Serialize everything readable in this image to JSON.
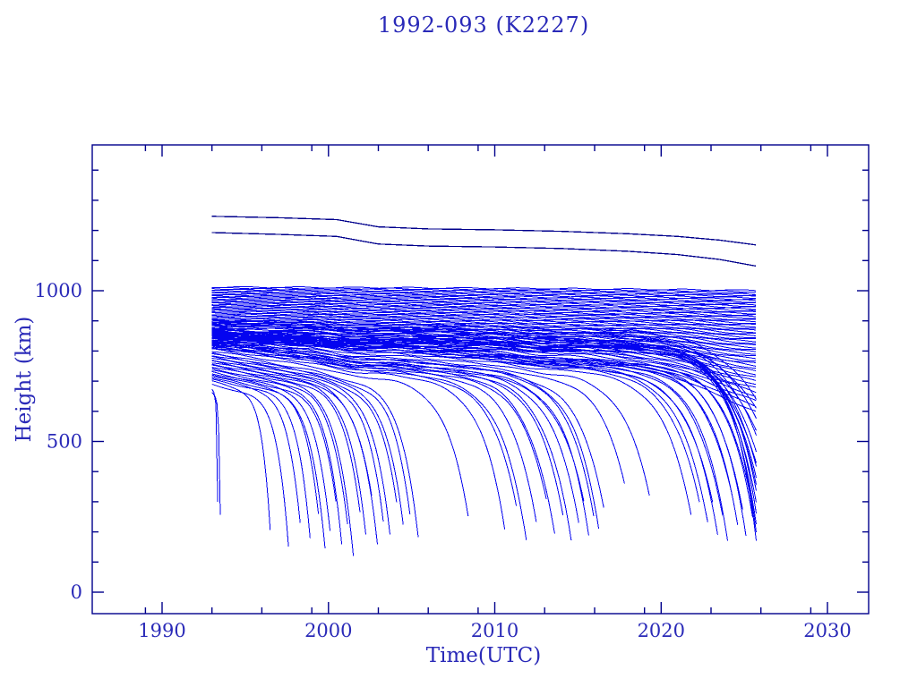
{
  "title": "1992-093 (K2227)",
  "colors": {
    "background": "#ffffff",
    "axis": "#00008c",
    "text": "#2a2ab8",
    "debris_line": "#0404f0",
    "parent_line": "#00008c"
  },
  "chart_data": {
    "type": "line",
    "title": "1992-093 (K2227)",
    "xlabel": "Time(UTC)",
    "ylabel": "Height (km)",
    "xlim": [
      1985.8,
      2032.6
    ],
    "ylim": [
      -70,
      1484
    ],
    "grid": false,
    "legend": "none",
    "x_major_ticks": [
      1990,
      2000,
      2010,
      2020,
      2030
    ],
    "x_tick_labels": [
      "1990",
      "2000",
      "2010",
      "2020",
      "2030"
    ],
    "x_minor_ticks": [
      1989,
      1993,
      1996,
      1999,
      2003,
      2006,
      2009,
      2013,
      2016,
      2019,
      2023,
      2026,
      2029
    ],
    "y_major_ticks": [
      0,
      500,
      1000
    ],
    "y_tick_labels": [
      "0",
      "500",
      "1000"
    ],
    "y_minor_ticks": [
      100,
      200,
      300,
      400,
      600,
      700,
      800,
      900,
      1100,
      1200,
      1300,
      1400
    ],
    "epoch_start_year": 1993.0,
    "epoch_end_year": 2025.7,
    "parent_series": [
      {
        "name": "parent-object-upper",
        "points": [
          [
            1993,
            1247
          ],
          [
            1997,
            1242
          ],
          [
            2000.5,
            1236
          ],
          [
            2003,
            1212
          ],
          [
            2006,
            1205
          ],
          [
            2010,
            1202
          ],
          [
            2014,
            1197
          ],
          [
            2018,
            1189
          ],
          [
            2021,
            1180
          ],
          [
            2023.5,
            1168
          ],
          [
            2025.7,
            1152
          ]
        ]
      },
      {
        "name": "parent-object-lower",
        "points": [
          [
            1993,
            1193
          ],
          [
            1997,
            1187
          ],
          [
            2000.5,
            1180
          ],
          [
            2003,
            1155
          ],
          [
            2006,
            1148
          ],
          [
            2010,
            1145
          ],
          [
            2014,
            1140
          ],
          [
            2018,
            1131
          ],
          [
            2021,
            1120
          ],
          [
            2023.5,
            1104
          ],
          [
            2025.7,
            1082
          ]
        ]
      }
    ],
    "fragment_model": "height(t) = h0 - a*u - (h0 - a - hEnd)*u^p with u=(t-1993)/(tEnd-1993); curves ending before 2025.6 are re-entered fragments; columns: [h0_km, tEnd_year, hEnd_km, a_km, p]",
    "fragments": [
      [
        1012,
        2025.7,
        1001,
        6,
        3
      ],
      [
        1009,
        2025.7,
        997,
        6,
        3
      ],
      [
        1006,
        2025.7,
        993,
        7,
        3
      ],
      [
        1003,
        2025.7,
        989,
        7,
        3
      ],
      [
        1000,
        2025.7,
        985,
        8,
        3
      ],
      [
        997,
        2025.7,
        981,
        8,
        3
      ],
      [
        994,
        2025.7,
        977,
        9,
        3
      ],
      [
        991,
        2025.7,
        972,
        9,
        3
      ],
      [
        988,
        2025.7,
        968,
        10,
        3
      ],
      [
        985,
        2025.7,
        963,
        10,
        3
      ],
      [
        982,
        2025.7,
        959,
        11,
        3
      ],
      [
        979,
        2025.7,
        954,
        11,
        3
      ],
      [
        976,
        2025.7,
        950,
        12,
        3
      ],
      [
        973,
        2025.7,
        945,
        12,
        3
      ],
      [
        970,
        2025.7,
        940,
        13,
        3
      ],
      [
        967,
        2025.7,
        935,
        13,
        3
      ],
      [
        964,
        2025.7,
        930,
        14,
        3
      ],
      [
        961,
        2025.7,
        925,
        14,
        3
      ],
      [
        958,
        2025.7,
        920,
        15,
        3
      ],
      [
        955,
        2025.7,
        915,
        15,
        3
      ],
      [
        952,
        2025.7,
        910,
        16,
        3
      ],
      [
        949,
        2025.7,
        904,
        16,
        3
      ],
      [
        946,
        2025.7,
        899,
        17,
        3
      ],
      [
        943,
        2025.7,
        893,
        17,
        3
      ],
      [
        940,
        2025.7,
        888,
        18,
        3
      ],
      [
        937,
        2025.7,
        882,
        18,
        3
      ],
      [
        934,
        2025.7,
        876,
        19,
        3
      ],
      [
        931,
        2025.7,
        870,
        19,
        3
      ],
      [
        928,
        2025.7,
        864,
        20,
        3
      ],
      [
        925,
        2025.7,
        858,
        20,
        3
      ],
      [
        922,
        2025.7,
        852,
        21,
        3
      ],
      [
        919,
        2025.7,
        846,
        21,
        3
      ],
      [
        916,
        2025.7,
        840,
        22,
        3
      ],
      [
        913,
        2025.7,
        833,
        22,
        3
      ],
      [
        910,
        2025.7,
        827,
        23,
        3
      ],
      [
        907,
        2025.7,
        820,
        23,
        3
      ],
      [
        904,
        2025.7,
        813,
        24,
        3
      ],
      [
        901,
        2025.7,
        806,
        24,
        3
      ],
      [
        898,
        2025.7,
        799,
        25,
        3
      ],
      [
        895,
        2025.7,
        792,
        25,
        3
      ],
      [
        892,
        2025.7,
        784,
        26,
        3
      ],
      [
        889,
        2025.7,
        777,
        26,
        3
      ],
      [
        886,
        2025.7,
        769,
        27,
        3
      ],
      [
        883,
        2025.7,
        761,
        27,
        3
      ],
      [
        880,
        2025.7,
        753,
        28,
        4
      ],
      [
        876,
        2025.7,
        744,
        28,
        4
      ],
      [
        872,
        2025.7,
        735,
        29,
        4
      ],
      [
        868,
        2025.7,
        725,
        29,
        4
      ],
      [
        864,
        2025.7,
        715,
        30,
        4
      ],
      [
        860,
        2025.7,
        704,
        30,
        4
      ],
      [
        856,
        2025.7,
        693,
        31,
        4
      ],
      [
        851,
        2025.7,
        680,
        31,
        4
      ],
      [
        846,
        2025.7,
        666,
        32,
        5
      ],
      [
        841,
        2025.7,
        652,
        32,
        5
      ],
      [
        836,
        2025.7,
        637,
        33,
        5
      ],
      [
        830,
        2025.7,
        620,
        33,
        5
      ],
      [
        824,
        2025.7,
        602,
        34,
        5
      ],
      [
        902,
        2025.72,
        640,
        40,
        14
      ],
      [
        893,
        2025.72,
        580,
        45,
        14
      ],
      [
        884,
        2025.72,
        520,
        50,
        16
      ],
      [
        876,
        2025.72,
        468,
        55,
        16
      ],
      [
        868,
        2025.72,
        420,
        48,
        18
      ],
      [
        861,
        2025.72,
        380,
        52,
        18
      ],
      [
        854,
        2025.72,
        340,
        46,
        20
      ],
      [
        848,
        2025.72,
        300,
        50,
        20
      ],
      [
        842,
        2025.72,
        262,
        44,
        22
      ],
      [
        836,
        2025.72,
        230,
        48,
        22
      ],
      [
        830,
        2025.72,
        200,
        42,
        24
      ],
      [
        858,
        2025.72,
        172,
        55,
        24
      ],
      [
        871,
        2025.72,
        540,
        60,
        15
      ],
      [
        888,
        2025.72,
        610,
        42,
        13
      ],
      [
        846,
        2025.72,
        360,
        45,
        19
      ],
      [
        852,
        2025.72,
        432,
        50,
        17
      ],
      [
        672,
        1993.35,
        300,
        30,
        6
      ],
      [
        665,
        1993.5,
        258,
        35,
        6
      ],
      [
        700,
        1996.5,
        205,
        60,
        7
      ],
      [
        690,
        1997.6,
        152,
        70,
        7
      ],
      [
        712,
        1998.3,
        230,
        75,
        7
      ],
      [
        705,
        1998.9,
        180,
        70,
        8
      ],
      [
        722,
        1999.4,
        262,
        80,
        8
      ],
      [
        716,
        1999.8,
        150,
        85,
        8
      ],
      [
        730,
        2000.1,
        210,
        85,
        8
      ],
      [
        726,
        2000.45,
        312,
        90,
        9
      ],
      [
        736,
        2000.8,
        170,
        90,
        9
      ],
      [
        742,
        2001.15,
        240,
        95,
        9
      ],
      [
        748,
        2001.5,
        132,
        95,
        9
      ],
      [
        752,
        2001.9,
        280,
        100,
        10
      ],
      [
        757,
        2002.25,
        200,
        100,
        10
      ],
      [
        762,
        2002.6,
        330,
        105,
        10
      ],
      [
        766,
        2002.95,
        162,
        105,
        10
      ],
      [
        771,
        2003.3,
        240,
        110,
        11
      ],
      [
        776,
        2003.7,
        190,
        110,
        11
      ],
      [
        781,
        2004.1,
        300,
        115,
        11
      ],
      [
        786,
        2004.5,
        222,
        115,
        11
      ],
      [
        790,
        2004.9,
        260,
        120,
        12
      ],
      [
        794,
        2005.4,
        180,
        120,
        12
      ],
      [
        800,
        2008.4,
        252,
        130,
        12
      ],
      [
        806,
        2010.6,
        210,
        135,
        13
      ],
      [
        810,
        2011.3,
        290,
        135,
        13
      ],
      [
        814,
        2011.9,
        182,
        140,
        13
      ],
      [
        818,
        2012.5,
        240,
        140,
        14
      ],
      [
        812,
        2013.1,
        320,
        130,
        14
      ],
      [
        820,
        2013.6,
        200,
        135,
        14
      ],
      [
        816,
        2014.1,
        262,
        130,
        15
      ],
      [
        824,
        2014.6,
        172,
        140,
        15
      ],
      [
        828,
        2015.05,
        232,
        140,
        15
      ],
      [
        822,
        2015.35,
        300,
        130,
        15
      ],
      [
        826,
        2015.65,
        190,
        135,
        16
      ],
      [
        832,
        2015.95,
        250,
        130,
        16
      ],
      [
        836,
        2016.25,
        212,
        135,
        16
      ],
      [
        830,
        2016.55,
        280,
        130,
        16
      ],
      [
        840,
        2017.8,
        362,
        140,
        17
      ],
      [
        844,
        2019.3,
        322,
        140,
        17
      ],
      [
        848,
        2021.8,
        260,
        145,
        18
      ],
      [
        850,
        2022.3,
        300,
        140,
        18
      ],
      [
        854,
        2022.8,
        240,
        140,
        18
      ],
      [
        858,
        2023.1,
        302,
        145,
        18
      ],
      [
        848,
        2023.4,
        200,
        140,
        19
      ],
      [
        862,
        2023.7,
        260,
        145,
        19
      ],
      [
        856,
        2024.0,
        180,
        140,
        20
      ],
      [
        866,
        2024.3,
        320,
        145,
        20
      ],
      [
        860,
        2024.6,
        230,
        140,
        21
      ],
      [
        870,
        2024.9,
        280,
        145,
        21
      ],
      [
        864,
        2025.1,
        190,
        140,
        22
      ],
      [
        874,
        2025.3,
        342,
        145,
        22
      ],
      [
        868,
        2025.5,
        250,
        140,
        23
      ]
    ]
  }
}
